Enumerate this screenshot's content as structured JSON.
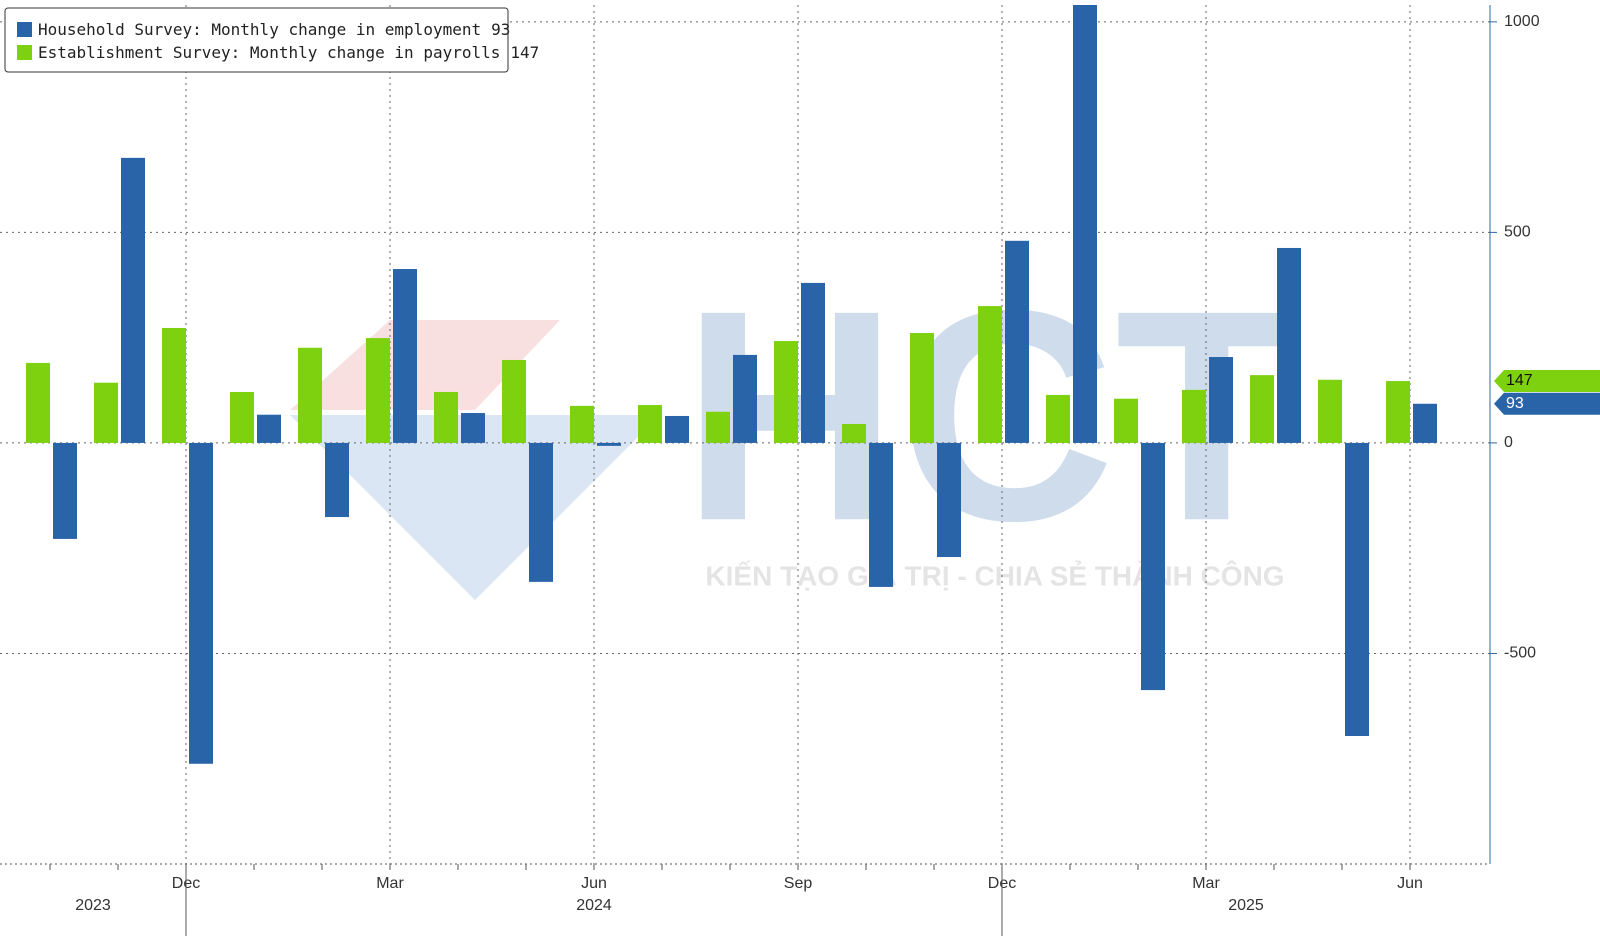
{
  "chart_data": {
    "type": "bar",
    "categories": [
      null,
      null,
      "Dec",
      null,
      null,
      "Mar",
      null,
      null,
      "Jun",
      null,
      null,
      "Sep",
      null,
      null,
      "Dec",
      null,
      null,
      "Mar",
      null,
      null,
      "Jun"
    ],
    "year_labels": [
      "2023",
      null,
      "2024",
      null,
      null,
      null,
      null,
      null,
      null,
      null,
      null,
      null,
      null,
      null,
      "2025",
      null,
      null,
      null,
      null,
      null,
      null
    ],
    "series": [
      {
        "name": "Establishment Survey: Monthly change in payrolls",
        "color": "#7dd10f",
        "values": [
          190,
          143,
          273,
          121,
          226,
          249,
          121,
          197,
          88,
          90,
          74,
          242,
          45,
          261,
          325,
          114,
          105,
          126,
          161,
          150,
          147
        ]
      },
      {
        "name": "Household Survey: Monthly change in employment",
        "color": "#2a64a8",
        "values": [
          -228,
          677,
          -762,
          67,
          -176,
          413,
          71,
          -330,
          -7,
          64,
          209,
          380,
          -342,
          -271,
          480,
          1040,
          -587,
          204,
          463,
          -696,
          93
        ]
      }
    ],
    "ylim": [
      -1000,
      1040
    ],
    "yticks": [
      -500,
      0,
      500,
      1000
    ],
    "grid": true,
    "legend": "top-left",
    "watermark": {
      "logo": "HCT",
      "tagline": "KIẾN TẠO GIÁ TRỊ - CHIA SẺ THÀNH CÔNG"
    }
  }
}
